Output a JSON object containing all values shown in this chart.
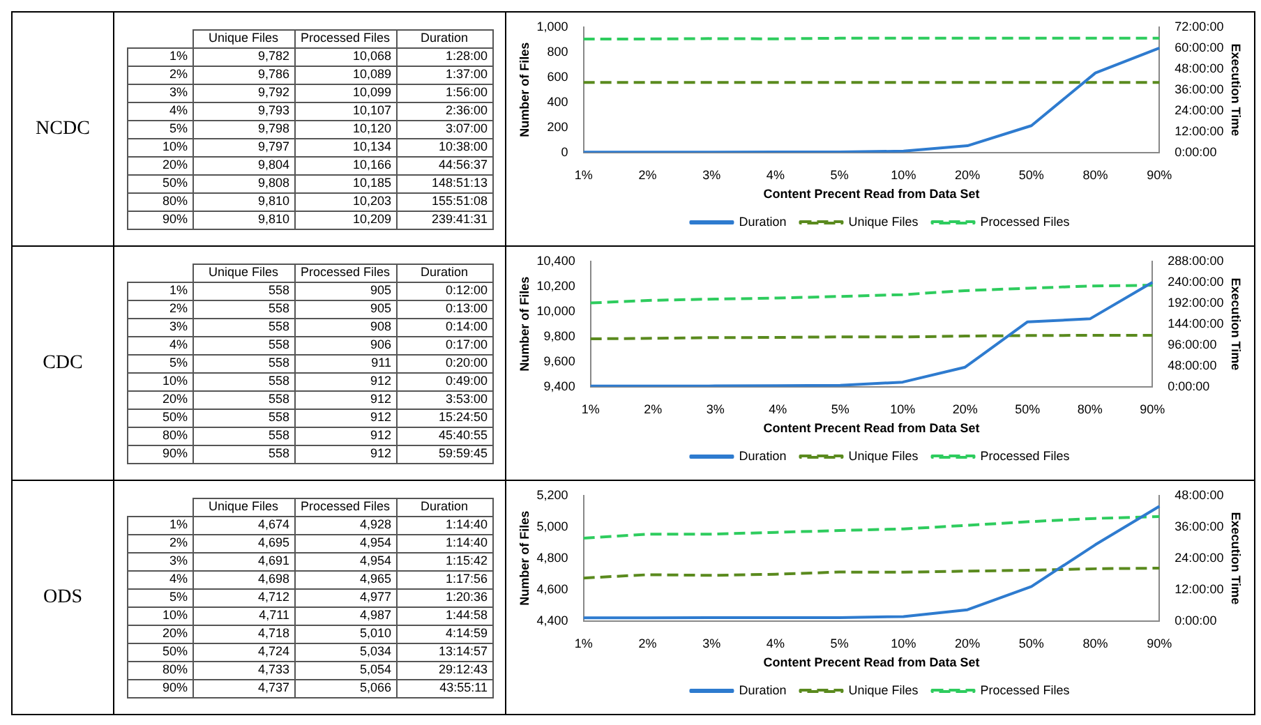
{
  "chart_data": [
    {
      "type": "other",
      "title": "NCDC",
      "categories": [
        "1%",
        "2%",
        "3%",
        "4%",
        "5%",
        "10%",
        "20%",
        "50%",
        "80%",
        "90%"
      ],
      "series": [
        {
          "name": "Unique Files",
          "values": [
            9782,
            9786,
            9792,
            9793,
            9798,
            9797,
            9804,
            9808,
            9810,
            9810
          ],
          "value_labels": [
            "9,782",
            "9,786",
            "9,792",
            "9,793",
            "9,798",
            "9,797",
            "9,804",
            "9,808",
            "9,810",
            "9,810"
          ]
        },
        {
          "name": "Processed Files",
          "values": [
            10068,
            10089,
            10099,
            10107,
            10120,
            10134,
            10166,
            10185,
            10203,
            10209
          ],
          "value_labels": [
            "10,068",
            "10,089",
            "10,099",
            "10,107",
            "10,120",
            "10,134",
            "10,166",
            "10,185",
            "10,203",
            "10,209"
          ]
        },
        {
          "name": "Duration",
          "values": [
            1.46667,
            1.61667,
            1.93333,
            2.6,
            3.11667,
            10.63333,
            44.94361,
            148.85361,
            155.85222,
            239.69194
          ],
          "value_labels": [
            "1:28:00",
            "1:37:00",
            "1:56:00",
            "2:36:00",
            "3:07:00",
            "10:38:00",
            "44:56:37",
            "148:51:13",
            "155:51:08",
            "239:41:31"
          ]
        }
      ]
    },
    {
      "type": "line",
      "categories": [
        "1%",
        "2%",
        "3%",
        "4%",
        "5%",
        "10%",
        "20%",
        "50%",
        "80%",
        "90%"
      ],
      "xlabel": "Content Precent Read from Data Set",
      "ylabel": "Number of Files",
      "y2label": "Execution Time",
      "ylim": [
        0,
        1000
      ],
      "yticks": [
        0,
        200,
        400,
        600,
        800,
        {
          "value": 1000,
          "label": "1,000"
        }
      ],
      "y2lim": [
        0,
        72
      ],
      "y2ticks": [
        {
          "value": 0,
          "label": "0:00:00"
        },
        {
          "value": 12,
          "label": "12:00:00"
        },
        {
          "value": 24,
          "label": "24:00:00"
        },
        {
          "value": 36,
          "label": "36:00:00"
        },
        {
          "value": 48,
          "label": "48:00:00"
        },
        {
          "value": 60,
          "label": "60:00:00"
        },
        {
          "value": 72,
          "label": "72:00:00"
        }
      ],
      "legend": "bottom",
      "marker": "none",
      "series": [
        {
          "name": "Duration",
          "color": "#2e7bcf",
          "axis": "y2",
          "line_style": "solid",
          "values": [
            0.2,
            0.2,
            0.2,
            0.3,
            0.3,
            0.8,
            3.9,
            15.41,
            45.68,
            60.0
          ]
        },
        {
          "name": "Unique Files",
          "color": "#5a8a1e",
          "line_style": "dashed",
          "values": [
            558,
            558,
            558,
            558,
            558,
            558,
            558,
            558,
            558,
            558
          ]
        },
        {
          "name": "Processed Files",
          "color": "#2ecc5e",
          "line_style": "dashed",
          "values": [
            905,
            905,
            908,
            906,
            911,
            912,
            912,
            912,
            912,
            912
          ]
        }
      ]
    },
    {
      "type": "other",
      "title": "CDC",
      "categories": [
        "1%",
        "2%",
        "3%",
        "4%",
        "5%",
        "10%",
        "20%",
        "50%",
        "80%",
        "90%"
      ],
      "series": [
        {
          "name": "Unique Files",
          "values": [
            558,
            558,
            558,
            558,
            558,
            558,
            558,
            558,
            558,
            558
          ],
          "value_labels": [
            "558",
            "558",
            "558",
            "558",
            "558",
            "558",
            "558",
            "558",
            "558",
            "558"
          ]
        },
        {
          "name": "Processed Files",
          "values": [
            905,
            905,
            908,
            906,
            911,
            912,
            912,
            912,
            912,
            912
          ],
          "value_labels": [
            "905",
            "905",
            "908",
            "906",
            "911",
            "912",
            "912",
            "912",
            "912",
            "912"
          ]
        },
        {
          "name": "Duration",
          "values": [
            0.2,
            0.21667,
            0.23333,
            0.28333,
            0.33333,
            0.81667,
            3.88333,
            15.41389,
            45.68194,
            59.99583
          ],
          "value_labels": [
            "0:12:00",
            "0:13:00",
            "0:14:00",
            "0:17:00",
            "0:20:00",
            "0:49:00",
            "3:53:00",
            "15:24:50",
            "45:40:55",
            "59:59:45"
          ]
        }
      ]
    },
    {
      "type": "line",
      "categories": [
        "1%",
        "2%",
        "3%",
        "4%",
        "5%",
        "10%",
        "20%",
        "50%",
        "80%",
        "90%"
      ],
      "xlabel": "Content Precent Read from Data Set",
      "ylabel": "Number of Files",
      "y2label": "Execution Time",
      "ylim": [
        9400,
        10400
      ],
      "yticks": [
        {
          "value": 9400,
          "label": "9,400"
        },
        {
          "value": 9600,
          "label": "9,600"
        },
        {
          "value": 9800,
          "label": "9,800"
        },
        {
          "value": 10000,
          "label": "10,000"
        },
        {
          "value": 10200,
          "label": "10,200"
        },
        {
          "value": 10400,
          "label": "10,400"
        }
      ],
      "y2lim": [
        0,
        288
      ],
      "y2ticks": [
        {
          "value": 0,
          "label": "0:00:00"
        },
        {
          "value": 48,
          "label": "48:00:00"
        },
        {
          "value": 96,
          "label": "96:00:00"
        },
        {
          "value": 144,
          "label": "144:00:00"
        },
        {
          "value": 192,
          "label": "192:00:00"
        },
        {
          "value": 240,
          "label": "240:00:00"
        },
        {
          "value": 288,
          "label": "288:00:00"
        }
      ],
      "legend": "bottom",
      "marker": "none",
      "series": [
        {
          "name": "Duration",
          "color": "#2e7bcf",
          "axis": "y2",
          "line_style": "solid",
          "values": [
            1.5,
            1.6,
            1.9,
            2.6,
            3.1,
            10.6,
            44.9,
            148.9,
            155.9,
            239.7
          ]
        },
        {
          "name": "Unique Files",
          "color": "#5a8a1e",
          "line_style": "dashed",
          "values": [
            9782,
            9786,
            9792,
            9793,
            9798,
            9797,
            9804,
            9808,
            9810,
            9810
          ]
        },
        {
          "name": "Processed Files",
          "color": "#2ecc5e",
          "line_style": "dashed",
          "values": [
            10068,
            10089,
            10099,
            10107,
            10120,
            10134,
            10166,
            10185,
            10203,
            10209
          ]
        }
      ]
    },
    {
      "type": "other",
      "title": "ODS",
      "categories": [
        "1%",
        "2%",
        "3%",
        "4%",
        "5%",
        "10%",
        "20%",
        "50%",
        "80%",
        "90%"
      ],
      "series": [
        {
          "name": "Unique Files",
          "values": [
            4674,
            4695,
            4691,
            4698,
            4712,
            4711,
            4718,
            4724,
            4733,
            4737
          ],
          "value_labels": [
            "4,674",
            "4,695",
            "4,691",
            "4,698",
            "4,712",
            "4,711",
            "4,718",
            "4,724",
            "4,733",
            "4,737"
          ]
        },
        {
          "name": "Processed Files",
          "values": [
            4928,
            4954,
            4954,
            4965,
            4977,
            4987,
            5010,
            5034,
            5054,
            5066
          ],
          "value_labels": [
            "4,928",
            "4,954",
            "4,954",
            "4,965",
            "4,977",
            "4,987",
            "5,010",
            "5,034",
            "5,054",
            "5,066"
          ]
        },
        {
          "name": "Duration",
          "values": [
            1.24444,
            1.24444,
            1.26167,
            1.29889,
            1.34333,
            1.74944,
            4.24972,
            13.24917,
            29.21194,
            43.91972
          ],
          "value_labels": [
            "1:14:40",
            "1:14:40",
            "1:15:42",
            "1:17:56",
            "1:20:36",
            "1:44:58",
            "4:14:59",
            "13:14:57",
            "29:12:43",
            "43:55:11"
          ]
        }
      ]
    },
    {
      "type": "line",
      "categories": [
        "1%",
        "2%",
        "3%",
        "4%",
        "5%",
        "10%",
        "20%",
        "50%",
        "80%",
        "90%"
      ],
      "xlabel": "Content Precent Read from Data Set",
      "ylabel": "Number of Files",
      "y2label": "Execution Time",
      "ylim": [
        4400,
        5200
      ],
      "yticks": [
        {
          "value": 4400,
          "label": "4,400"
        },
        {
          "value": 4600,
          "label": "4,600"
        },
        {
          "value": 4800,
          "label": "4,800"
        },
        {
          "value": 5000,
          "label": "5,000"
        },
        {
          "value": 5200,
          "label": "5,200"
        }
      ],
      "y2lim": [
        0,
        48
      ],
      "y2ticks": [
        {
          "value": 0,
          "label": "0:00:00"
        },
        {
          "value": 12,
          "label": "12:00:00"
        },
        {
          "value": 24,
          "label": "24:00:00"
        },
        {
          "value": 36,
          "label": "36:00:00"
        },
        {
          "value": 48,
          "label": "48:00:00"
        }
      ],
      "legend": "bottom",
      "marker": "none",
      "series": [
        {
          "name": "Duration",
          "color": "#2e7bcf",
          "axis": "y2",
          "line_style": "solid",
          "values": [
            1.2,
            1.2,
            1.3,
            1.3,
            1.3,
            1.7,
            4.3,
            13.2,
            29.2,
            43.9
          ]
        },
        {
          "name": "Unique Files",
          "color": "#5a8a1e",
          "line_style": "dashed",
          "values": [
            4674,
            4695,
            4691,
            4698,
            4712,
            4711,
            4718,
            4724,
            4733,
            4737
          ]
        },
        {
          "name": "Processed Files",
          "color": "#2ecc5e",
          "line_style": "dashed",
          "values": [
            4928,
            4954,
            4954,
            4965,
            4977,
            4987,
            5010,
            5034,
            5054,
            5066
          ]
        }
      ]
    }
  ]
}
